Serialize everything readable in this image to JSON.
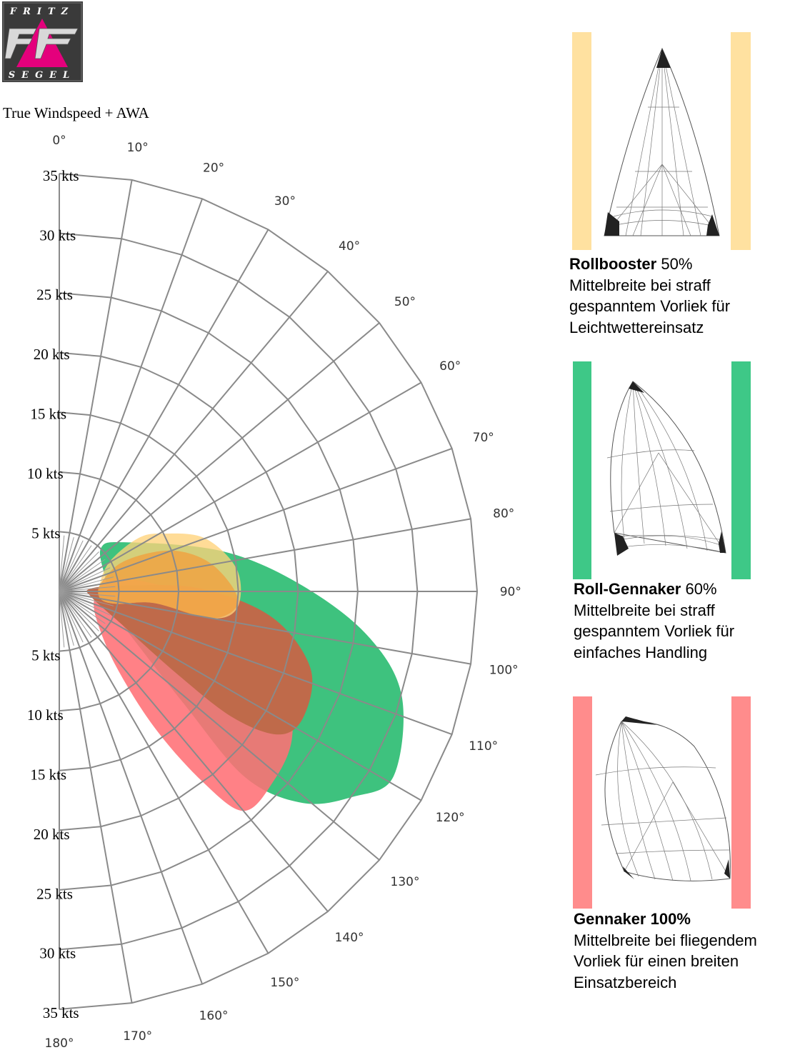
{
  "logo": {
    "top_text": "FRITZ",
    "bottom_text": "SEGEL",
    "name": "fritz-segel-logo"
  },
  "chart_title": "True Windspeed + AWA",
  "chart_data": {
    "type": "polar",
    "title": "True Windspeed + AWA",
    "angle_labels": [
      "0°",
      "10°",
      "20°",
      "30°",
      "40°",
      "50°",
      "60°",
      "70°",
      "80°",
      "90°",
      "100°",
      "110°",
      "120°",
      "130°",
      "140°",
      "150°",
      "160°",
      "170°",
      "180°"
    ],
    "angle_values": [
      0,
      10,
      20,
      30,
      40,
      50,
      60,
      70,
      80,
      90,
      100,
      110,
      120,
      130,
      140,
      150,
      160,
      170,
      180
    ],
    "radial_labels": [
      "5 kts",
      "10 kts",
      "15 kts",
      "20 kts",
      "25 kts",
      "30 kts",
      "35 kts"
    ],
    "radial_values": [
      5,
      10,
      15,
      20,
      25,
      30,
      35
    ],
    "radial_max": 35,
    "series": [
      {
        "name": "Roll-Gennaker",
        "color": "#2ebd73",
        "opacity": 0.92,
        "outline": [
          [
            5,
            44
          ],
          [
            4,
            80
          ],
          [
            4,
            104
          ],
          [
            6,
            118
          ],
          [
            14,
            132
          ],
          [
            22,
            135
          ],
          [
            27,
            131
          ],
          [
            30,
            125
          ],
          [
            32,
            119
          ],
          [
            30,
            107
          ],
          [
            26,
            98
          ],
          [
            20,
            88
          ],
          [
            14,
            76
          ],
          [
            7,
            54
          ]
        ]
      },
      {
        "name": "Gennaker",
        "color": "#ff6f75",
        "opacity": 0.88,
        "outline": [
          [
            4,
            78
          ],
          [
            3,
            100
          ],
          [
            4,
            128
          ],
          [
            8,
            143
          ],
          [
            14,
            145
          ],
          [
            20,
            143
          ],
          [
            24,
            140
          ],
          [
            24,
            132
          ],
          [
            23,
            122
          ],
          [
            20,
            110
          ],
          [
            15,
            99
          ],
          [
            10,
            90
          ],
          [
            6,
            80
          ]
        ]
      },
      {
        "name": "Roll-Gennaker overlap",
        "color": "#bf6a4a",
        "opacity": 1,
        "outline": [
          [
            2.6,
            85
          ],
          [
            2.8,
            101
          ],
          [
            6,
            118
          ],
          [
            12,
            125
          ],
          [
            18,
            126
          ],
          [
            22,
            123
          ],
          [
            23,
            117
          ],
          [
            22,
            107
          ],
          [
            18,
            97
          ],
          [
            12,
            89
          ],
          [
            6,
            85
          ]
        ]
      },
      {
        "name": "Rollbooster",
        "color": "#ffd27a",
        "opacity": 0.78,
        "outline": [
          [
            3.5,
            100
          ],
          [
            3.5,
            78
          ],
          [
            5,
            59
          ],
          [
            8,
            56
          ],
          [
            10,
            61
          ],
          [
            13,
            70
          ],
          [
            15,
            83
          ],
          [
            15,
            95
          ],
          [
            13,
            100
          ],
          [
            8,
            97
          ],
          [
            5,
            102
          ]
        ]
      },
      {
        "name": "Rollbooster / Gennaker",
        "color": "#f0a040",
        "opacity": 0.8,
        "outline": [
          [
            3.5,
            100
          ],
          [
            3.5,
            80
          ],
          [
            6,
            65
          ],
          [
            10,
            70
          ],
          [
            13,
            80
          ],
          [
            15,
            93
          ],
          [
            13,
            100
          ],
          [
            8,
            97
          ],
          [
            5,
            102
          ]
        ]
      }
    ]
  },
  "sails": [
    {
      "name": "Rollbooster",
      "percent": "50%",
      "color": "#ffe1a0",
      "lines": [
        "Mittelbreite bei straff",
        "gespanntem Vorliek für",
        "Leichtwettereinsatz"
      ]
    },
    {
      "name": "Roll-Gennaker",
      "percent": "60%",
      "color": "#3ec887",
      "lines": [
        "Mittelbreite bei straff",
        "gespanntem Vorliek für",
        "einfaches Handling"
      ]
    },
    {
      "name": "Gennaker",
      "percent": "100%",
      "color": "#ff8c8c",
      "lines": [
        "Mittelbreite bei fliegendem",
        "Vorliek für einen breiten",
        "Einsatzbereich"
      ]
    }
  ]
}
